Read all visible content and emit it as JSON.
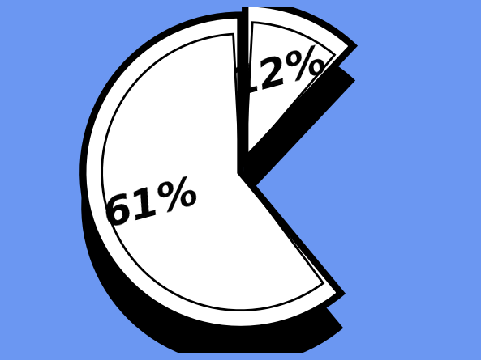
{
  "chart_data": {
    "type": "pie",
    "values": [
      61,
      12
    ],
    "value_labels": [
      "61%",
      "12%"
    ],
    "data_labels": true,
    "colors": [
      "#ffffff",
      "#ffffff"
    ]
  }
}
